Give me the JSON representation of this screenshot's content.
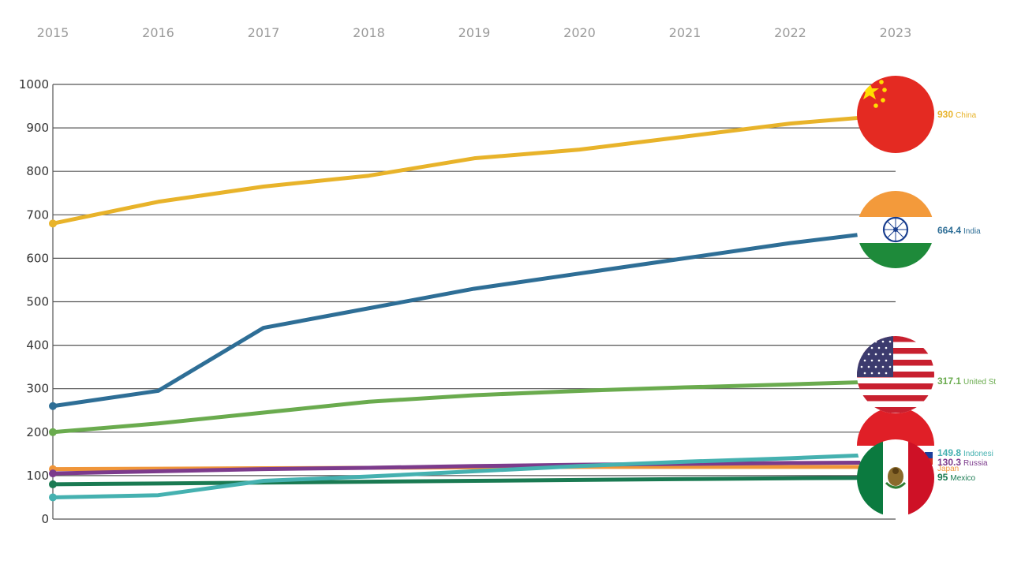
{
  "chart_data": {
    "type": "line",
    "title": "",
    "xlabel": "",
    "ylabel": "",
    "x": [
      "2015",
      "2016",
      "2017",
      "2018",
      "2019",
      "2020",
      "2021",
      "2022",
      "2023"
    ],
    "y_ticks": [
      "0",
      "100",
      "200",
      "300",
      "400",
      "500",
      "600",
      "700",
      "800",
      "900",
      "1000"
    ],
    "ylim": [
      0,
      1000
    ],
    "grid": true,
    "legend": "end-of-line labels with flag icons",
    "series": [
      {
        "name": "China",
        "value_label": "930",
        "color": "#e8b32a",
        "flag": "china-flag",
        "values": [
          680,
          730,
          765,
          790,
          830,
          850,
          880,
          910,
          930
        ]
      },
      {
        "name": "India",
        "value_label": "664.4",
        "color": "#2e6e96",
        "flag": "india-flag",
        "values": [
          260,
          295,
          440,
          485,
          530,
          565,
          600,
          635,
          664.4
        ]
      },
      {
        "name": "United St",
        "value_label": "317.1",
        "color": "#6aab4e",
        "flag": "usa-flag",
        "values": [
          200,
          220,
          245,
          270,
          285,
          295,
          303,
          310,
          317.1
        ]
      },
      {
        "name": "Indonesi",
        "value_label": "149.8",
        "color": "#45b1b0",
        "flag": "indonesia-flag",
        "values": [
          50,
          55,
          88,
          98,
          110,
          122,
          132,
          140,
          149.8
        ]
      },
      {
        "name": "Russia",
        "value_label": "130.3",
        "color": "#7c3b8c",
        "flag": "russia-flag",
        "values": [
          105,
          110,
          115,
          118,
          122,
          125,
          127,
          129,
          130.3
        ]
      },
      {
        "name": "Japan",
        "value_label": "",
        "color": "#f0963a",
        "flag": "",
        "values": [
          115,
          116,
          117,
          118,
          119,
          120,
          120,
          120,
          120
        ]
      },
      {
        "name": "Mexico",
        "value_label": "95",
        "color": "#1a7a52",
        "flag": "mexico-flag",
        "values": [
          80,
          82,
          84,
          86,
          88,
          90,
          92,
          94,
          95
        ]
      }
    ]
  }
}
